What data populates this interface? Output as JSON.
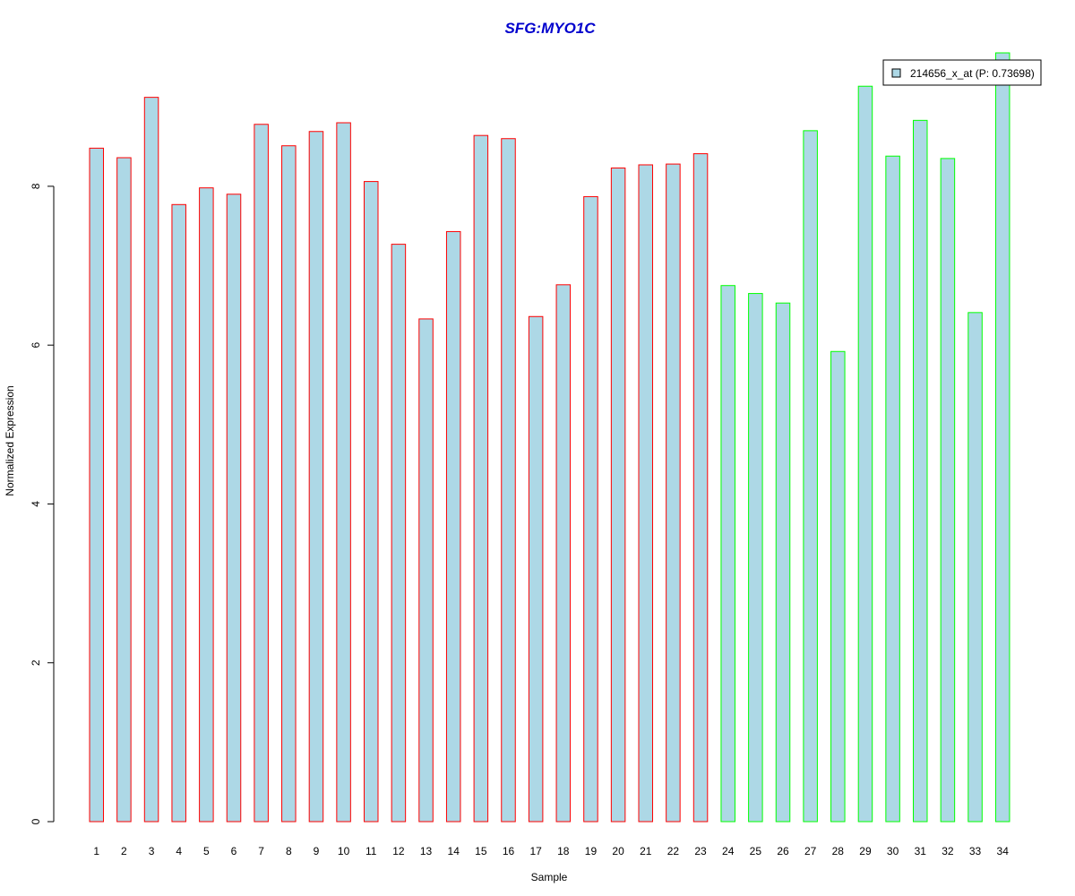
{
  "chart_data": {
    "type": "bar",
    "title": "SFG:MYO1C",
    "xlabel": "Sample",
    "ylabel": "Normalized Expression",
    "categories": [
      "1",
      "2",
      "3",
      "4",
      "5",
      "6",
      "7",
      "8",
      "9",
      "10",
      "11",
      "12",
      "13",
      "14",
      "15",
      "16",
      "17",
      "18",
      "19",
      "20",
      "21",
      "22",
      "23",
      "24",
      "25",
      "26",
      "27",
      "28",
      "29",
      "30",
      "31",
      "32",
      "33",
      "34"
    ],
    "series": [
      {
        "name": "214656_x_at (P: 0.73698)",
        "values": [
          8.48,
          8.36,
          9.12,
          7.77,
          7.98,
          7.9,
          8.78,
          8.51,
          8.69,
          8.8,
          8.06,
          7.27,
          6.33,
          7.43,
          8.64,
          8.6,
          6.36,
          6.76,
          7.87,
          8.23,
          8.27,
          8.28,
          8.41,
          6.75,
          6.65,
          6.53,
          8.7,
          5.92,
          9.26,
          8.38,
          8.83,
          8.35,
          6.41,
          9.68
        ]
      }
    ],
    "groups": [
      {
        "from": 1,
        "to": 23,
        "border_color": "#ff0000"
      },
      {
        "from": 24,
        "to": 34,
        "border_color": "#00ff00"
      }
    ],
    "y_ticks": [
      0,
      2,
      4,
      6,
      8
    ],
    "ylim": [
      0,
      9.68
    ],
    "grid": false,
    "legend_position": "top-right",
    "colors": {
      "bar_fill": "#add8e6",
      "title": "#0000cd",
      "axis": "#000000"
    }
  }
}
